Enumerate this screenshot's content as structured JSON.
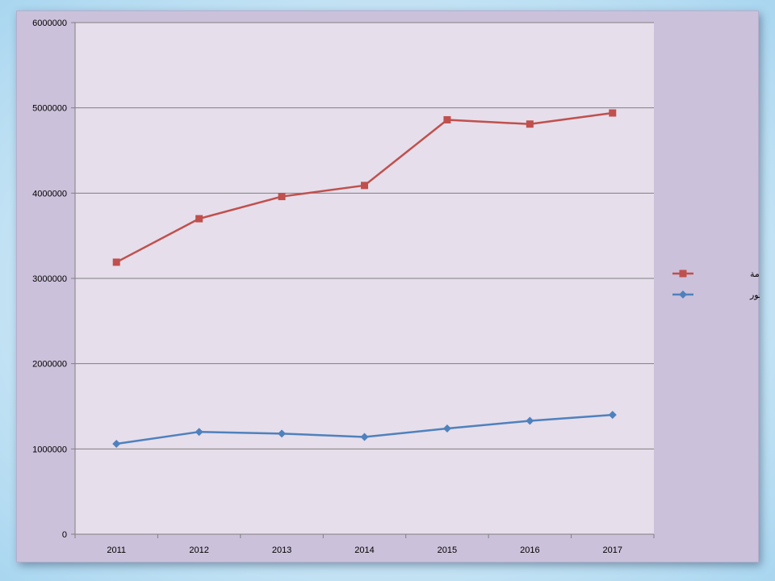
{
  "chart_data": {
    "type": "line",
    "title": "",
    "xlabel": "",
    "ylabel": "",
    "x": [
      "2011",
      "2012",
      "2013",
      "2014",
      "2015",
      "2016",
      "2017"
    ],
    "ylim": [
      0,
      6000000
    ],
    "yticks": [
      0,
      1000000,
      2000000,
      3000000,
      4000000,
      5000000,
      6000000
    ],
    "ytick_labels": [
      "0",
      "1000000",
      "2000000",
      "3000000",
      "4000000",
      "5000000",
      "6000000"
    ],
    "grid": "horizontal",
    "legend_position": "right",
    "series": [
      {
        "name": "الميزانية العامة",
        "color": "#c0504d",
        "marker": "square",
        "values": [
          3190000,
          3700000,
          3960000,
          4090000,
          4860000,
          4810000,
          4940000
        ]
      },
      {
        "name": "الأجور",
        "color": "#4f81bd",
        "marker": "diamond",
        "values": [
          1060000,
          1200000,
          1180000,
          1140000,
          1240000,
          1330000,
          1400000
        ]
      }
    ]
  },
  "colors": {
    "plot_background": "#e6deeb",
    "chart_background": "#ccc1da",
    "gridline": "#808080",
    "axis": "#808080"
  }
}
